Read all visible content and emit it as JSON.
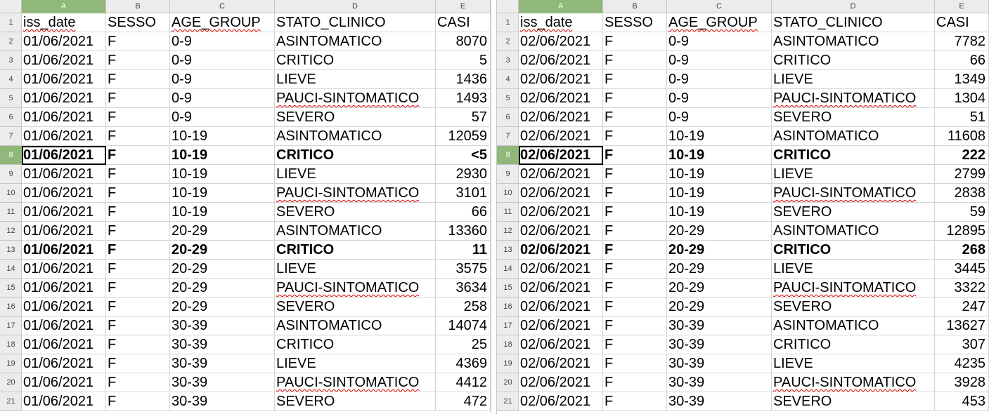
{
  "columns": [
    "A",
    "B",
    "C",
    "D",
    "E"
  ],
  "panes": [
    {
      "id": "left",
      "active_row": 8,
      "rows": [
        [
          "iss_date",
          "SESSO",
          "AGE_GROUP",
          "STATO_CLINICO",
          "CASI"
        ],
        [
          "01/06/2021",
          "F",
          "0-9",
          "ASINTOMATICO",
          "8070"
        ],
        [
          "01/06/2021",
          "F",
          "0-9",
          "CRITICO",
          "5"
        ],
        [
          "01/06/2021",
          "F",
          "0-9",
          "LIEVE",
          "1436"
        ],
        [
          "01/06/2021",
          "F",
          "0-9",
          "PAUCI-SINTOMATICO",
          "1493"
        ],
        [
          "01/06/2021",
          "F",
          "0-9",
          "SEVERO",
          "57"
        ],
        [
          "01/06/2021",
          "F",
          "10-19",
          "ASINTOMATICO",
          "12059"
        ],
        [
          "01/06/2021",
          "F",
          "10-19",
          "CRITICO",
          "<5"
        ],
        [
          "01/06/2021",
          "F",
          "10-19",
          "LIEVE",
          "2930"
        ],
        [
          "01/06/2021",
          "F",
          "10-19",
          "PAUCI-SINTOMATICO",
          "3101"
        ],
        [
          "01/06/2021",
          "F",
          "10-19",
          "SEVERO",
          "66"
        ],
        [
          "01/06/2021",
          "F",
          "20-29",
          "ASINTOMATICO",
          "13360"
        ],
        [
          "01/06/2021",
          "F",
          "20-29",
          "CRITICO",
          "11"
        ],
        [
          "01/06/2021",
          "F",
          "20-29",
          "LIEVE",
          "3575"
        ],
        [
          "01/06/2021",
          "F",
          "20-29",
          "PAUCI-SINTOMATICO",
          "3634"
        ],
        [
          "01/06/2021",
          "F",
          "20-29",
          "SEVERO",
          "258"
        ],
        [
          "01/06/2021",
          "F",
          "30-39",
          "ASINTOMATICO",
          "14074"
        ],
        [
          "01/06/2021",
          "F",
          "30-39",
          "CRITICO",
          "25"
        ],
        [
          "01/06/2021",
          "F",
          "30-39",
          "LIEVE",
          "4369"
        ],
        [
          "01/06/2021",
          "F",
          "30-39",
          "PAUCI-SINTOMATICO",
          "4412"
        ],
        [
          "01/06/2021",
          "F",
          "30-39",
          "SEVERO",
          "472"
        ]
      ]
    },
    {
      "id": "right",
      "active_row": 8,
      "rows": [
        [
          "iss_date",
          "SESSO",
          "AGE_GROUP",
          "STATO_CLINICO",
          "CASI"
        ],
        [
          "02/06/2021",
          "F",
          "0-9",
          "ASINTOMATICO",
          "7782"
        ],
        [
          "02/06/2021",
          "F",
          "0-9",
          "CRITICO",
          "66"
        ],
        [
          "02/06/2021",
          "F",
          "0-9",
          "LIEVE",
          "1349"
        ],
        [
          "02/06/2021",
          "F",
          "0-9",
          "PAUCI-SINTOMATICO",
          "1304"
        ],
        [
          "02/06/2021",
          "F",
          "0-9",
          "SEVERO",
          "51"
        ],
        [
          "02/06/2021",
          "F",
          "10-19",
          "ASINTOMATICO",
          "11608"
        ],
        [
          "02/06/2021",
          "F",
          "10-19",
          "CRITICO",
          "222"
        ],
        [
          "02/06/2021",
          "F",
          "10-19",
          "LIEVE",
          "2799"
        ],
        [
          "02/06/2021",
          "F",
          "10-19",
          "PAUCI-SINTOMATICO",
          "2838"
        ],
        [
          "02/06/2021",
          "F",
          "10-19",
          "SEVERO",
          "59"
        ],
        [
          "02/06/2021",
          "F",
          "20-29",
          "ASINTOMATICO",
          "12895"
        ],
        [
          "02/06/2021",
          "F",
          "20-29",
          "CRITICO",
          "268"
        ],
        [
          "02/06/2021",
          "F",
          "20-29",
          "LIEVE",
          "3445"
        ],
        [
          "02/06/2021",
          "F",
          "20-29",
          "PAUCI-SINTOMATICO",
          "3322"
        ],
        [
          "02/06/2021",
          "F",
          "20-29",
          "SEVERO",
          "247"
        ],
        [
          "02/06/2021",
          "F",
          "30-39",
          "ASINTOMATICO",
          "13627"
        ],
        [
          "02/06/2021",
          "F",
          "30-39",
          "CRITICO",
          "307"
        ],
        [
          "02/06/2021",
          "F",
          "30-39",
          "LIEVE",
          "4235"
        ],
        [
          "02/06/2021",
          "F",
          "30-39",
          "PAUCI-SINTOMATICO",
          "3928"
        ],
        [
          "02/06/2021",
          "F",
          "30-39",
          "SEVERO",
          "453"
        ]
      ]
    }
  ]
}
